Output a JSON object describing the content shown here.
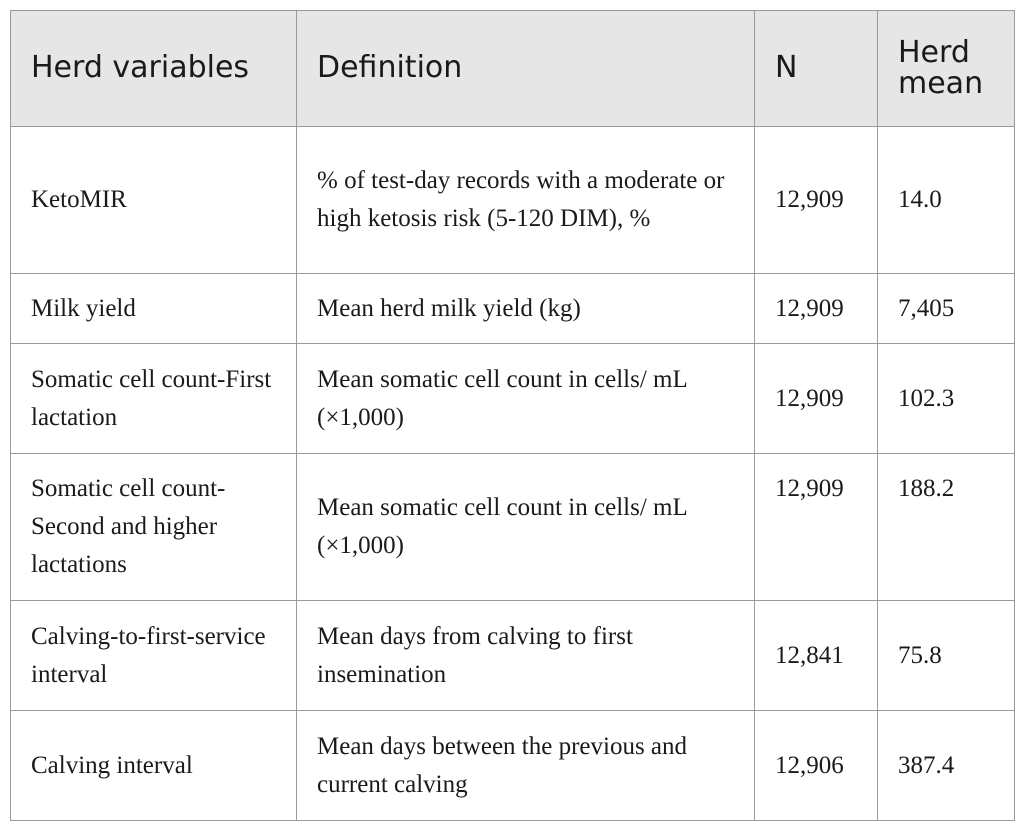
{
  "table": {
    "headers": [
      "Herd variables",
      "Definition",
      "N",
      "Herd mean"
    ],
    "rows": [
      {
        "variable": "KetoMIR",
        "definition": "% of test-day records with a moderate or high ketosis risk (5-120 DIM), %",
        "n": "12,909",
        "mean": "14.0"
      },
      {
        "variable": "Milk yield",
        "definition": "Mean herd milk yield (kg)",
        "n": "12,909",
        "mean": "7,405"
      },
      {
        "variable": "Somatic cell count-First lactation",
        "definition": "Mean somatic cell count in cells/ mL (×1,000)",
        "n": "12,909",
        "mean": "102.3"
      },
      {
        "variable": "Somatic cell count-Second and higher lactations",
        "definition": "Mean somatic cell count in cells/ mL (×1,000)",
        "n": "12,909",
        "mean": "188.2"
      },
      {
        "variable": "Calving-to-first-service interval",
        "definition": "Mean days from calving to first insemination",
        "n": "12,841",
        "mean": "75.8"
      },
      {
        "variable": "Calving interval",
        "definition": "Mean days between the previous and current calving",
        "n": "12,906",
        "mean": "387.4"
      }
    ]
  }
}
